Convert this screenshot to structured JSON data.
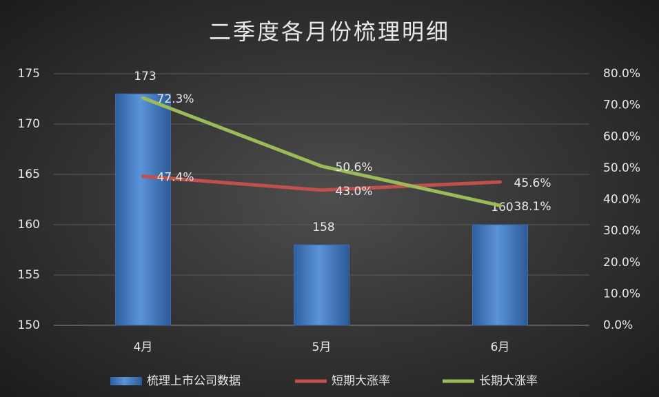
{
  "chart_data": {
    "type": "bar",
    "title": "二季度各月份梳理明细",
    "categories": [
      "4月",
      "5月",
      "6月"
    ],
    "series": [
      {
        "name": "梳理上市公司数据",
        "type": "bar",
        "color": "#4f81bd",
        "values": [
          173,
          158,
          160
        ]
      },
      {
        "name": "短期大涨率",
        "type": "line",
        "axis": "y2",
        "color": "#c0504d",
        "values": [
          47.4,
          43.0,
          45.6
        ],
        "value_labels": [
          "47.4%",
          "43.0%",
          "45.6%"
        ]
      },
      {
        "name": "长期大涨率",
        "type": "line",
        "axis": "y2",
        "color": "#9bbb59",
        "values": [
          72.3,
          50.6,
          38.1
        ],
        "value_labels": [
          "72.3%",
          "50.6%",
          "38.1%"
        ]
      }
    ],
    "ylim": [
      150,
      175
    ],
    "yticks": [
      150,
      155,
      160,
      165,
      170,
      175
    ],
    "y2lim": [
      0,
      80
    ],
    "y2ticks": [
      {
        "value": 0,
        "label": "0.0%"
      },
      {
        "value": 10,
        "label": "10.0%"
      },
      {
        "value": 20,
        "label": "20.0%"
      },
      {
        "value": 30,
        "label": "30.0%"
      },
      {
        "value": 40,
        "label": "40.0%"
      },
      {
        "value": 50,
        "label": "50.0%"
      },
      {
        "value": 60,
        "label": "60.0%"
      },
      {
        "value": 70,
        "label": "70.0%"
      },
      {
        "value": 80,
        "label": "80.0%"
      }
    ],
    "grid": true,
    "legend": "bottom"
  }
}
